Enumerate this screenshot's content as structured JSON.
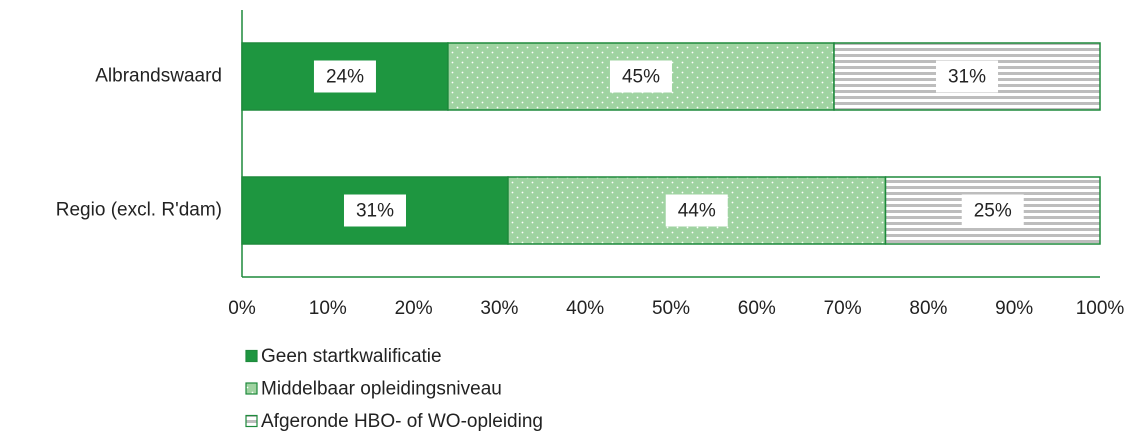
{
  "chart_data": {
    "type": "stacked-bar-horizontal",
    "categories": [
      "Albrandswaard",
      "Regio (excl. R'dam)"
    ],
    "series": [
      {
        "name": "Geen startkwalificatie",
        "color": "#1e9640",
        "pattern": "solid",
        "values": [
          24,
          31
        ],
        "value_labels": [
          "24%",
          "31%"
        ]
      },
      {
        "name": "Middelbaar opleidingsniveau",
        "color": "#9fd3a1",
        "pattern": "dots",
        "values": [
          45,
          44
        ],
        "value_labels": [
          "45%",
          "44%"
        ]
      },
      {
        "name": "Afgeronde HBO- of WO-opleiding",
        "color": "#bdbdbd",
        "pattern": "stripes",
        "values": [
          31,
          25
        ],
        "value_labels": [
          "31%",
          "25%"
        ]
      }
    ],
    "xlim": [
      0,
      100
    ],
    "xticks": [
      {
        "value": 0,
        "label": "0%"
      },
      {
        "value": 10,
        "label": "10%"
      },
      {
        "value": 20,
        "label": "20%"
      },
      {
        "value": 30,
        "label": "30%"
      },
      {
        "value": 40,
        "label": "40%"
      },
      {
        "value": 50,
        "label": "50%"
      },
      {
        "value": 60,
        "label": "60%"
      },
      {
        "value": 70,
        "label": "70%"
      },
      {
        "value": 80,
        "label": "80%"
      },
      {
        "value": 90,
        "label": "90%"
      },
      {
        "value": 100,
        "label": "100%"
      }
    ],
    "grid": false,
    "legend": "bottom"
  }
}
